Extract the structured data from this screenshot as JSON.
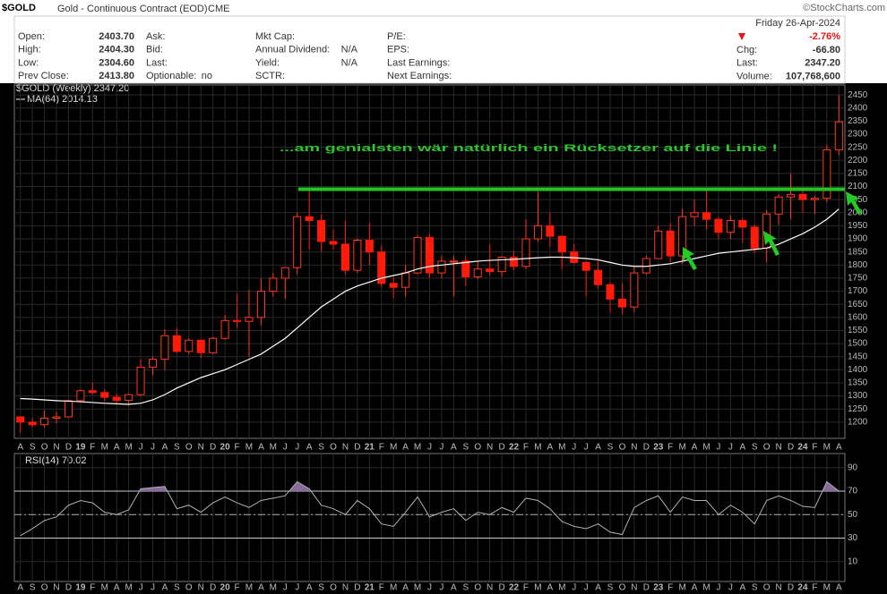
{
  "header": {
    "symbol": "$GOLD",
    "description": "Gold - Continuous Contract (EOD)",
    "exchange": "CME",
    "copyright": "©StockCharts.com",
    "date": "Friday  26-Apr-2024",
    "change_pct": "-2.76%",
    "columns": [
      [
        {
          "label": "Open:",
          "value": "2403.70"
        },
        {
          "label": "High:",
          "value": "2404.30"
        },
        {
          "label": "Low:",
          "value": "2304.60"
        },
        {
          "label": "Prev Close:",
          "value": "2413.80"
        }
      ],
      [
        {
          "label": "Ask:"
        },
        {
          "label": "Bid:"
        },
        {
          "label": "Last:"
        },
        {
          "label": "Optionable:",
          "value": "no"
        }
      ],
      [
        {
          "label": "Mkt Cap:"
        },
        {
          "label": "Annual Dividend:",
          "value": "N/A"
        },
        {
          "label": "Yield:",
          "value": "N/A"
        },
        {
          "label": "SCTR:"
        }
      ],
      [
        {
          "label": "P/E:"
        },
        {
          "label": "EPS:"
        },
        {
          "label": "Last Earnings:"
        },
        {
          "label": "Next Earnings:"
        }
      ],
      [
        {
          "label": "Chg:",
          "value": "-66.80"
        },
        {
          "label": "Last:",
          "value": "2347.20"
        },
        {
          "label": "Volume:",
          "value": "107,768,600"
        }
      ]
    ]
  },
  "chart_data": [
    {
      "type": "candlestick",
      "legend": "$GOLD (Weekly) 2347.20",
      "categories": [
        "A",
        "S",
        "O",
        "N",
        "D",
        "19",
        "F",
        "M",
        "A",
        "M",
        "J",
        "J",
        "A",
        "S",
        "O",
        "N",
        "D",
        "20",
        "F",
        "M",
        "A",
        "M",
        "J",
        "J",
        "A",
        "S",
        "O",
        "N",
        "D",
        "21",
        "F",
        "M",
        "A",
        "M",
        "J",
        "J",
        "A",
        "S",
        "O",
        "N",
        "D",
        "22",
        "F",
        "M",
        "A",
        "M",
        "J",
        "J",
        "A",
        "S",
        "O",
        "N",
        "D",
        "23",
        "F",
        "M",
        "A",
        "M",
        "J",
        "J",
        "A",
        "S",
        "O",
        "N",
        "D",
        "24",
        "F",
        "M",
        "A"
      ],
      "open": [
        1220,
        1200,
        1190,
        1215,
        1220,
        1282,
        1320,
        1313,
        1295,
        1283,
        1305,
        1410,
        1440,
        1530,
        1470,
        1513,
        1465,
        1520,
        1588,
        1585,
        1600,
        1700,
        1750,
        1790,
        1985,
        1970,
        1890,
        1880,
        1780,
        1895,
        1850,
        1730,
        1715,
        1770,
        1905,
        1770,
        1815,
        1815,
        1755,
        1785,
        1775,
        1830,
        1795,
        1900,
        1950,
        1910,
        1850,
        1810,
        1780,
        1725,
        1670,
        1640,
        1770,
        1825,
        1930,
        1835,
        1985,
        2000,
        1975,
        1925,
        1970,
        1945,
        1865,
        1995,
        2060,
        2070,
        2050,
        2055,
        2240
      ],
      "high": [
        1220,
        1215,
        1245,
        1240,
        1285,
        1325,
        1350,
        1325,
        1310,
        1310,
        1440,
        1450,
        1555,
        1560,
        1520,
        1515,
        1525,
        1610,
        1690,
        1705,
        1750,
        1770,
        1790,
        2000,
        2090,
        1995,
        1935,
        1970,
        1900,
        1960,
        1875,
        1755,
        1800,
        1915,
        1920,
        1835,
        1835,
        1835,
        1815,
        1880,
        1835,
        1855,
        1975,
        2080,
        2000,
        1910,
        1880,
        1815,
        1825,
        1735,
        1730,
        1800,
        1835,
        1950,
        1960,
        2015,
        2050,
        2085,
        1985,
        1990,
        1980,
        1955,
        2010,
        2070,
        2150,
        2090,
        2065,
        2260,
        2450
      ],
      "low": [
        1160,
        1180,
        1180,
        1195,
        1220,
        1275,
        1305,
        1280,
        1265,
        1265,
        1300,
        1380,
        1400,
        1465,
        1460,
        1445,
        1460,
        1515,
        1560,
        1450,
        1570,
        1680,
        1670,
        1765,
        1860,
        1850,
        1860,
        1765,
        1770,
        1800,
        1715,
        1675,
        1680,
        1765,
        1750,
        1750,
        1680,
        1720,
        1745,
        1760,
        1755,
        1780,
        1785,
        1890,
        1870,
        1785,
        1805,
        1680,
        1710,
        1620,
        1615,
        1620,
        1765,
        1825,
        1810,
        1805,
        1950,
        1935,
        1900,
        1900,
        1885,
        1845,
        1810,
        1955,
        1975,
        2000,
        1995,
        2040,
        2220
      ],
      "close": [
        1200,
        1190,
        1215,
        1220,
        1282,
        1320,
        1313,
        1295,
        1283,
        1305,
        1410,
        1440,
        1530,
        1470,
        1513,
        1465,
        1520,
        1588,
        1585,
        1600,
        1700,
        1750,
        1790,
        1985,
        1970,
        1890,
        1880,
        1780,
        1895,
        1850,
        1730,
        1715,
        1770,
        1905,
        1770,
        1815,
        1815,
        1755,
        1785,
        1775,
        1830,
        1795,
        1900,
        1950,
        1910,
        1850,
        1810,
        1780,
        1725,
        1670,
        1640,
        1770,
        1825,
        1930,
        1835,
        1985,
        2000,
        1975,
        1925,
        1970,
        1945,
        1865,
        1995,
        2060,
        2070,
        2050,
        2055,
        2240,
        2347.2
      ],
      "up_color": "#ff3a1e",
      "down_color": "#ff1a0a",
      "overlays": [
        {
          "name": "MA(64) 2014.13",
          "color": "#ffffff",
          "values": [
            1290,
            1288,
            1285,
            1282,
            1280,
            1278,
            1275,
            1272,
            1270,
            1268,
            1272,
            1285,
            1305,
            1330,
            1350,
            1370,
            1385,
            1400,
            1420,
            1440,
            1460,
            1490,
            1520,
            1560,
            1600,
            1640,
            1670,
            1700,
            1720,
            1735,
            1750,
            1760,
            1770,
            1785,
            1795,
            1800,
            1805,
            1810,
            1815,
            1818,
            1820,
            1822,
            1825,
            1828,
            1830,
            1830,
            1828,
            1825,
            1820,
            1810,
            1800,
            1795,
            1795,
            1800,
            1805,
            1815,
            1825,
            1835,
            1845,
            1850,
            1855,
            1860,
            1865,
            1880,
            1900,
            1920,
            1945,
            1975,
            2014.13
          ]
        }
      ],
      "hline": {
        "value": 2090,
        "color": "#22c422"
      },
      "annotation": "...am genialsten wär natürlich ein Rücksetzer auf die Linie !",
      "ylim": [
        1138,
        2488
      ],
      "yticks": [
        1200,
        1250,
        1300,
        1350,
        1400,
        1450,
        1500,
        1550,
        1600,
        1650,
        1700,
        1750,
        1800,
        1850,
        1900,
        1950,
        2000,
        2050,
        2100,
        2150,
        2200,
        2250,
        2300,
        2350,
        2400,
        2450
      ],
      "grid": true
    },
    {
      "type": "line",
      "series": [
        {
          "name": "RSI(14) 70.02",
          "color": "#b0b0b0",
          "values": [
            32,
            38,
            45,
            48,
            58,
            62,
            60,
            52,
            50,
            54,
            72,
            73,
            74,
            55,
            58,
            52,
            60,
            65,
            60,
            56,
            62,
            64,
            66,
            78,
            72,
            58,
            55,
            50,
            62,
            55,
            42,
            40,
            52,
            65,
            48,
            52,
            55,
            45,
            52,
            50,
            56,
            52,
            64,
            62,
            55,
            44,
            40,
            38,
            42,
            35,
            33,
            56,
            62,
            66,
            52,
            65,
            62,
            62,
            50,
            58,
            52,
            42,
            62,
            66,
            62,
            57,
            56,
            78,
            70.02
          ]
        }
      ],
      "ylim": [
        -7,
        102
      ],
      "yticks": [
        10,
        30,
        50,
        70,
        90
      ],
      "ref_lines": [
        30,
        70
      ],
      "mid_line": 50,
      "fill_above": 70,
      "fill_color": "#8a6a9a",
      "grid": true
    }
  ]
}
